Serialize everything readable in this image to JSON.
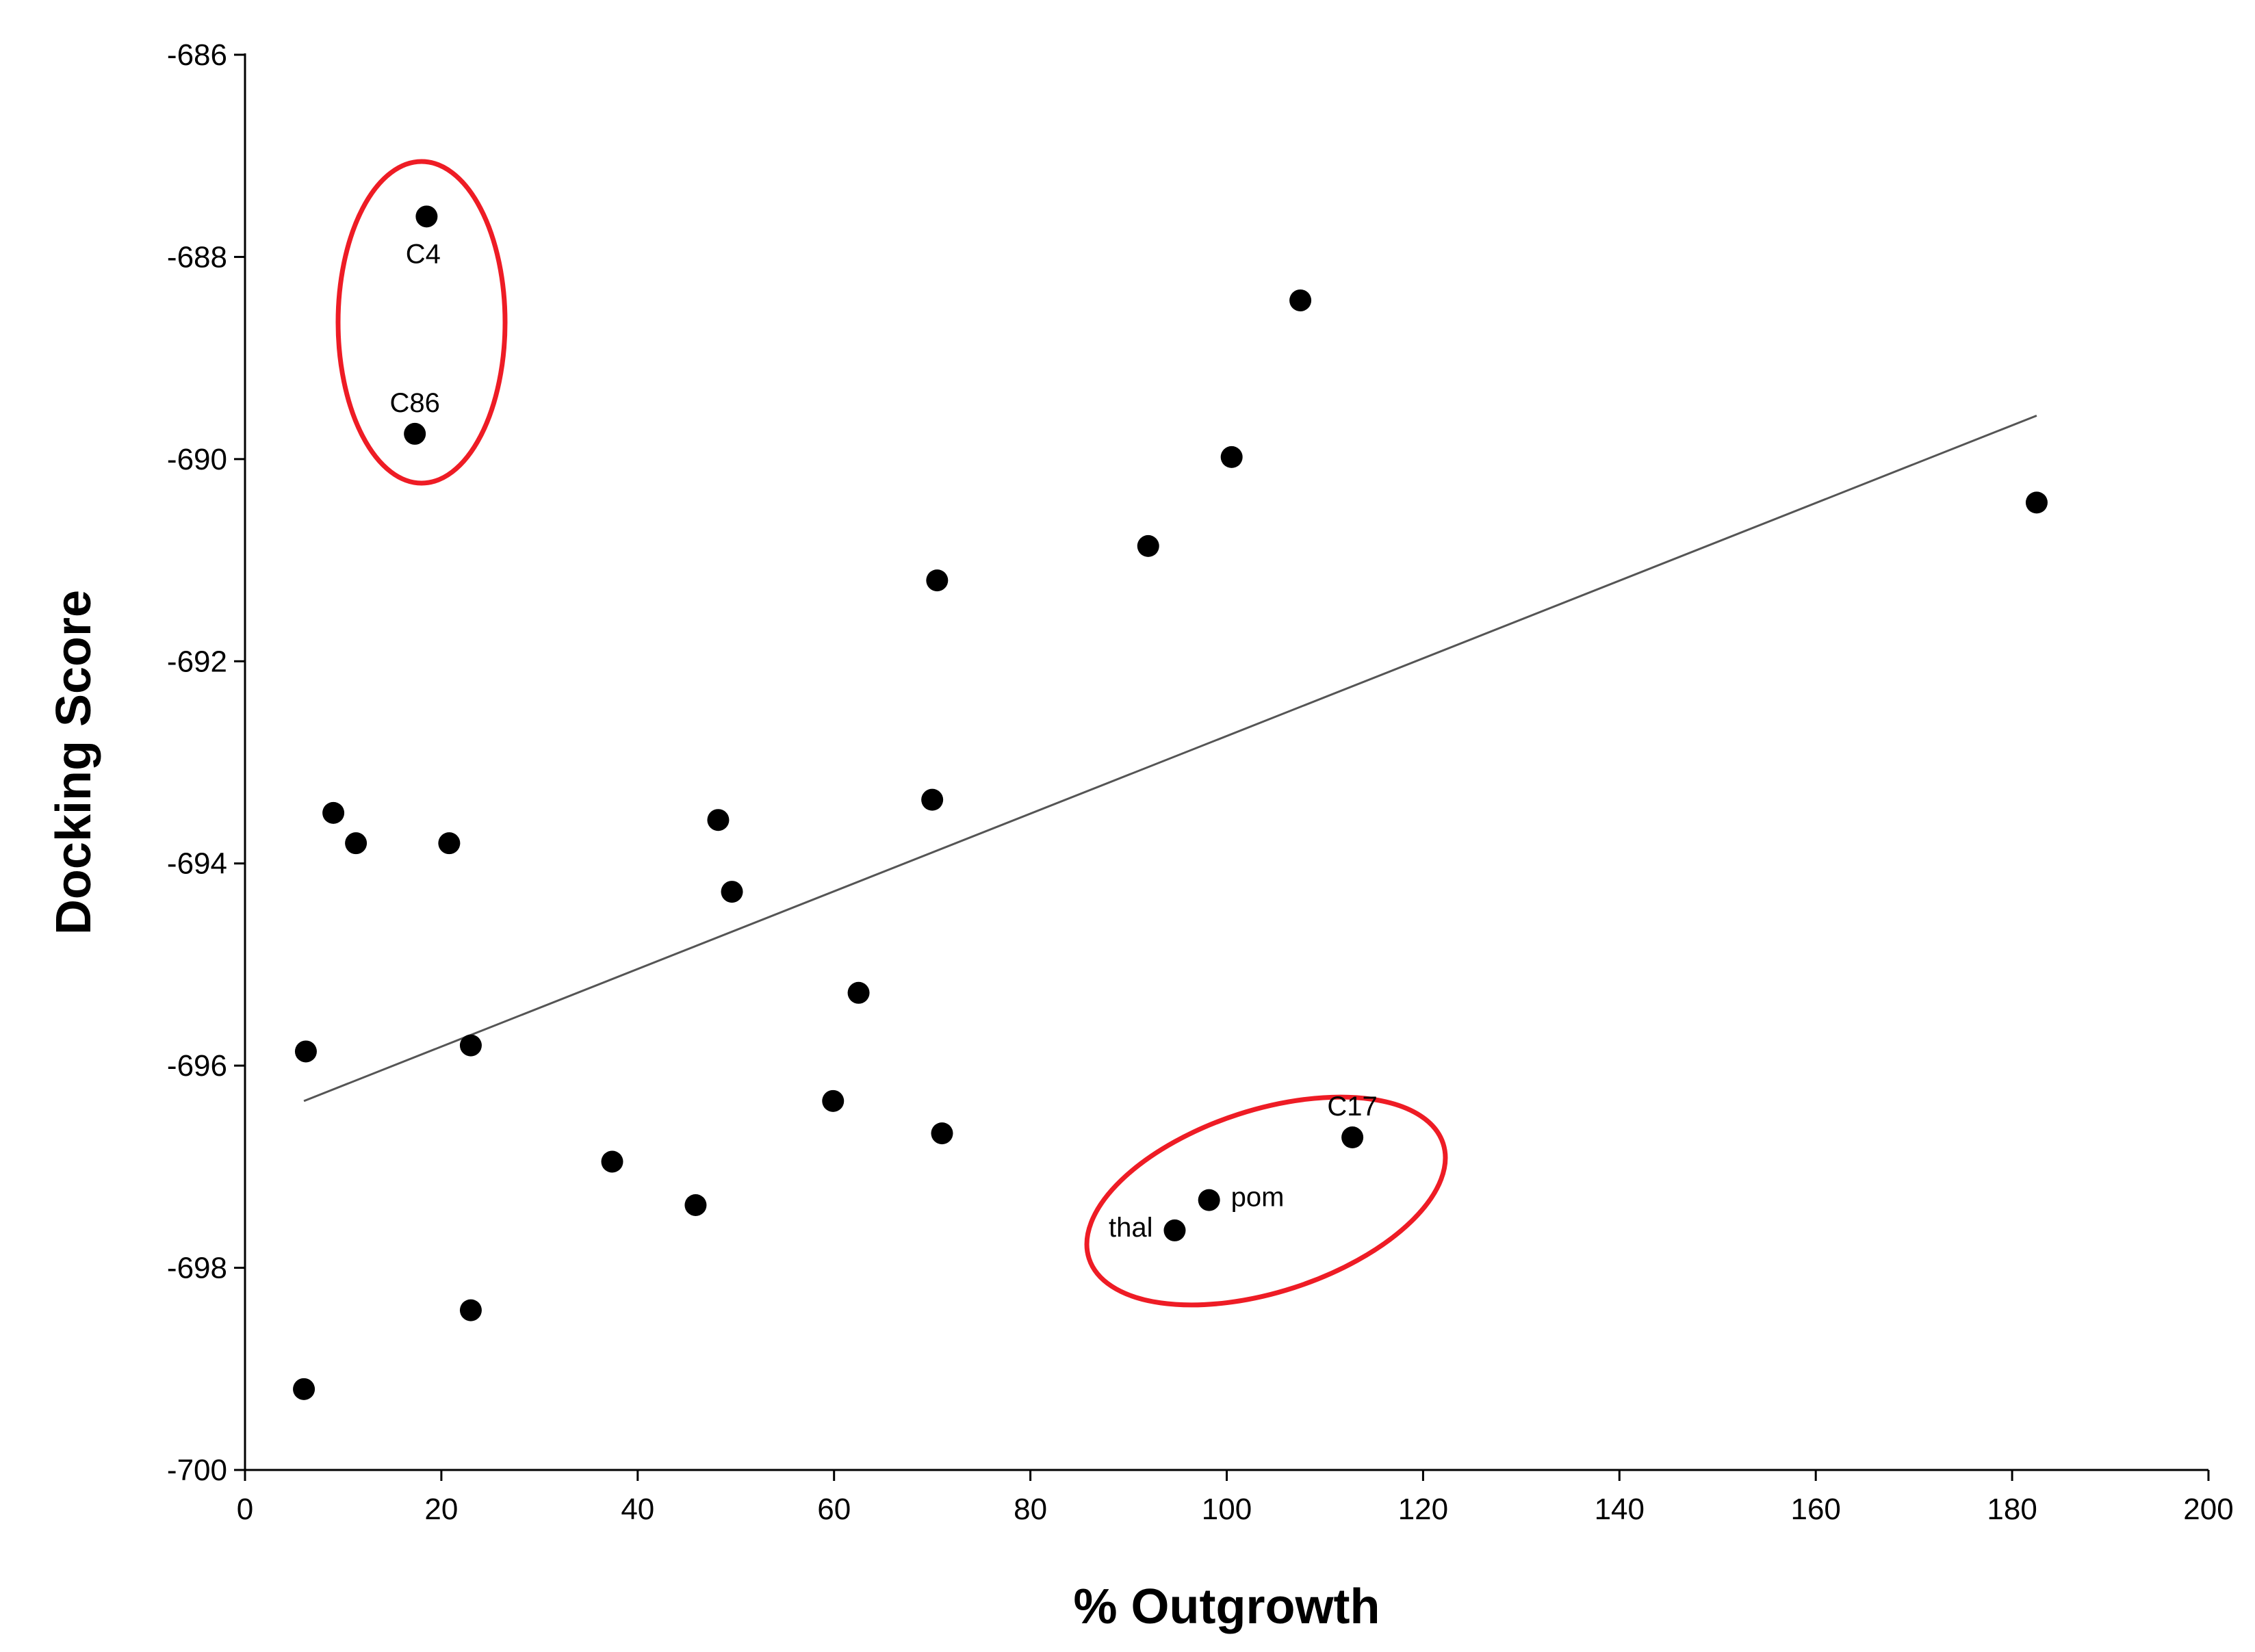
{
  "chart_data": {
    "type": "scatter",
    "title": "",
    "xlabel": "% Outgrowth",
    "ylabel": "Docking Score",
    "xlim": [
      0,
      200
    ],
    "ylim": [
      -700,
      -686
    ],
    "xticks": [
      0,
      20,
      40,
      60,
      80,
      100,
      120,
      140,
      160,
      180,
      200
    ],
    "yticks": [
      -700,
      -698,
      -696,
      -694,
      -692,
      -690,
      -688,
      -686
    ],
    "grid": false,
    "legend": "none",
    "marker_color": "#000000",
    "points": [
      {
        "x": 18.5,
        "y": -687.6,
        "label": "C4"
      },
      {
        "x": 17.3,
        "y": -689.75,
        "label": "C86"
      },
      {
        "x": 107.5,
        "y": -688.43,
        "label": ""
      },
      {
        "x": 100.5,
        "y": -689.98,
        "label": ""
      },
      {
        "x": 182.5,
        "y": -690.43,
        "label": ""
      },
      {
        "x": 92.0,
        "y": -690.86,
        "label": ""
      },
      {
        "x": 70.5,
        "y": -691.2,
        "label": ""
      },
      {
        "x": 70.0,
        "y": -693.37,
        "label": ""
      },
      {
        "x": 9.0,
        "y": -693.5,
        "label": ""
      },
      {
        "x": 11.3,
        "y": -693.8,
        "label": ""
      },
      {
        "x": 20.8,
        "y": -693.8,
        "label": ""
      },
      {
        "x": 48.2,
        "y": -693.57,
        "label": ""
      },
      {
        "x": 49.6,
        "y": -694.28,
        "label": ""
      },
      {
        "x": 62.5,
        "y": -695.28,
        "label": ""
      },
      {
        "x": 6.2,
        "y": -695.86,
        "label": ""
      },
      {
        "x": 23.0,
        "y": -695.8,
        "label": ""
      },
      {
        "x": 59.9,
        "y": -696.35,
        "label": ""
      },
      {
        "x": 71.0,
        "y": -696.67,
        "label": ""
      },
      {
        "x": 37.4,
        "y": -696.95,
        "label": ""
      },
      {
        "x": 45.9,
        "y": -697.38,
        "label": ""
      },
      {
        "x": 112.8,
        "y": -696.71,
        "label": "C17"
      },
      {
        "x": 98.2,
        "y": -697.33,
        "label": "pom"
      },
      {
        "x": 94.7,
        "y": -697.63,
        "label": "thal"
      },
      {
        "x": 23.0,
        "y": -698.42,
        "label": ""
      },
      {
        "x": 6.0,
        "y": -699.2,
        "label": ""
      }
    ],
    "trendline": {
      "x": [
        6,
        182.5
      ],
      "y": [
        -696.35,
        -689.57
      ],
      "color": "#555555"
    },
    "highlights": [
      {
        "members": [
          "C4",
          "C86"
        ],
        "color": "#ee1c25"
      },
      {
        "members": [
          "C17",
          "pom",
          "thal"
        ],
        "color": "#ee1c25"
      }
    ]
  }
}
